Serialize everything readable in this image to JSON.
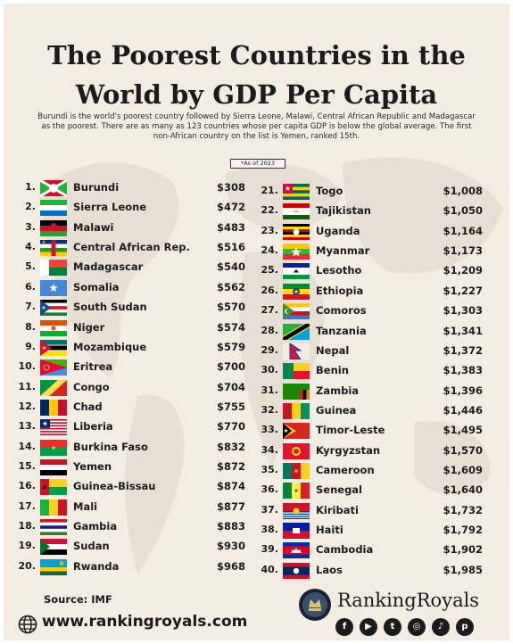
{
  "title_line1": "The Poorest Countries in the",
  "title_line2": "World by GDP Per Capita",
  "subtitle": "Burundi is the world's poorest country followed by Sierra Leone, Malawi, Central African Republic and Madagascar as the poorest. There are as many as 123 countries whose per capita GDP is below the global average. The first non-African country on the list is Yemen, ranked 15th.",
  "as_of": "*As of 2023",
  "source": "Source: IMF",
  "website": "www.rankingroyals.com",
  "brand": "RankingRoyals",
  "icons": {
    "globe": "globe-icon",
    "logo": "rankingroyals-logo",
    "socials": [
      "facebook-icon",
      "youtube-icon",
      "twitter-icon",
      "instagram-icon",
      "tiktok-icon",
      "pinterest-icon"
    ]
  },
  "colors": {
    "background": "#f2ece3",
    "text": "#1b1b1b"
  },
  "chart_data": {
    "type": "table",
    "columns": [
      "Rank",
      "Flag",
      "Country",
      "GDP per capita"
    ],
    "rows": [
      {
        "rank": "1.",
        "country": "Burundi",
        "value": "$308",
        "flag": "burundi-flag"
      },
      {
        "rank": "2.",
        "country": "Sierra Leone",
        "value": "$472",
        "flag": "sierra-leone-flag"
      },
      {
        "rank": "3.",
        "country": "Malawi",
        "value": "$483",
        "flag": "malawi-flag"
      },
      {
        "rank": "4.",
        "country": "Central African Rep.",
        "value": "$516",
        "flag": "central-african-republic-flag"
      },
      {
        "rank": "5.",
        "country": "Madagascar",
        "value": "$540",
        "flag": "madagascar-flag"
      },
      {
        "rank": "6.",
        "country": "Somalia",
        "value": "$562",
        "flag": "somalia-flag"
      },
      {
        "rank": "7.",
        "country": "South Sudan",
        "value": "$570",
        "flag": "south-sudan-flag"
      },
      {
        "rank": "8.",
        "country": "Niger",
        "value": "$574",
        "flag": "niger-flag"
      },
      {
        "rank": "9.",
        "country": "Mozambique",
        "value": "$579",
        "flag": "mozambique-flag"
      },
      {
        "rank": "10.",
        "country": "Eritrea",
        "value": "$700",
        "flag": "eritrea-flag"
      },
      {
        "rank": "11.",
        "country": "Congo",
        "value": "$704",
        "flag": "congo-flag"
      },
      {
        "rank": "12.",
        "country": "Chad",
        "value": "$755",
        "flag": "chad-flag"
      },
      {
        "rank": "13.",
        "country": "Liberia",
        "value": "$770",
        "flag": "liberia-flag"
      },
      {
        "rank": "14.",
        "country": "Burkina Faso",
        "value": "$832",
        "flag": "burkina-faso-flag"
      },
      {
        "rank": "15.",
        "country": "Yemen",
        "value": "$872",
        "flag": "yemen-flag"
      },
      {
        "rank": "16.",
        "country": "Guinea-Bissau",
        "value": "$874",
        "flag": "guinea-bissau-flag"
      },
      {
        "rank": "17.",
        "country": "Mali",
        "value": "$877",
        "flag": "mali-flag"
      },
      {
        "rank": "18.",
        "country": "Gambia",
        "value": "$883",
        "flag": "gambia-flag"
      },
      {
        "rank": "19.",
        "country": "Sudan",
        "value": "$930",
        "flag": "sudan-flag"
      },
      {
        "rank": "20.",
        "country": "Rwanda",
        "value": "$968",
        "flag": "rwanda-flag"
      },
      {
        "rank": "21.",
        "country": "Togo",
        "value": "$1,008",
        "flag": "togo-flag"
      },
      {
        "rank": "22.",
        "country": "Tajikistan",
        "value": "$1,050",
        "flag": "tajikistan-flag"
      },
      {
        "rank": "23.",
        "country": "Uganda",
        "value": "$1,164",
        "flag": "uganda-flag"
      },
      {
        "rank": "24.",
        "country": "Myanmar",
        "value": "$1,173",
        "flag": "myanmar-flag"
      },
      {
        "rank": "25.",
        "country": "Lesotho",
        "value": "$1,209",
        "flag": "lesotho-flag"
      },
      {
        "rank": "26.",
        "country": "Ethiopia",
        "value": "$1,227",
        "flag": "ethiopia-flag"
      },
      {
        "rank": "27.",
        "country": "Comoros",
        "value": "$1,303",
        "flag": "comoros-flag"
      },
      {
        "rank": "28.",
        "country": "Tanzania",
        "value": "$1,341",
        "flag": "tanzania-flag"
      },
      {
        "rank": "29.",
        "country": "Nepal",
        "value": "$1,372",
        "flag": "nepal-flag"
      },
      {
        "rank": "30.",
        "country": "Benin",
        "value": "$1,383",
        "flag": "benin-flag"
      },
      {
        "rank": "31.",
        "country": "Zambia",
        "value": "$1,396",
        "flag": "zambia-flag"
      },
      {
        "rank": "32.",
        "country": "Guinea",
        "value": "$1,446",
        "flag": "guinea-flag"
      },
      {
        "rank": "33.",
        "country": "Timor-Leste",
        "value": "$1,495",
        "flag": "timor-leste-flag"
      },
      {
        "rank": "34.",
        "country": "Kyrgyzstan",
        "value": "$1,570",
        "flag": "kyrgyzstan-flag"
      },
      {
        "rank": "35.",
        "country": "Cameroon",
        "value": "$1,609",
        "flag": "cameroon-flag"
      },
      {
        "rank": "36.",
        "country": "Senegal",
        "value": "$1,640",
        "flag": "senegal-flag"
      },
      {
        "rank": "37.",
        "country": "Kiribati",
        "value": "$1,732",
        "flag": "kiribati-flag"
      },
      {
        "rank": "38.",
        "country": "Haiti",
        "value": "$1,792",
        "flag": "haiti-flag"
      },
      {
        "rank": "39.",
        "country": "Cambodia",
        "value": "$1,902",
        "flag": "cambodia-flag"
      },
      {
        "rank": "40.",
        "country": "Laos",
        "value": "$1,985",
        "flag": "laos-flag"
      }
    ]
  }
}
